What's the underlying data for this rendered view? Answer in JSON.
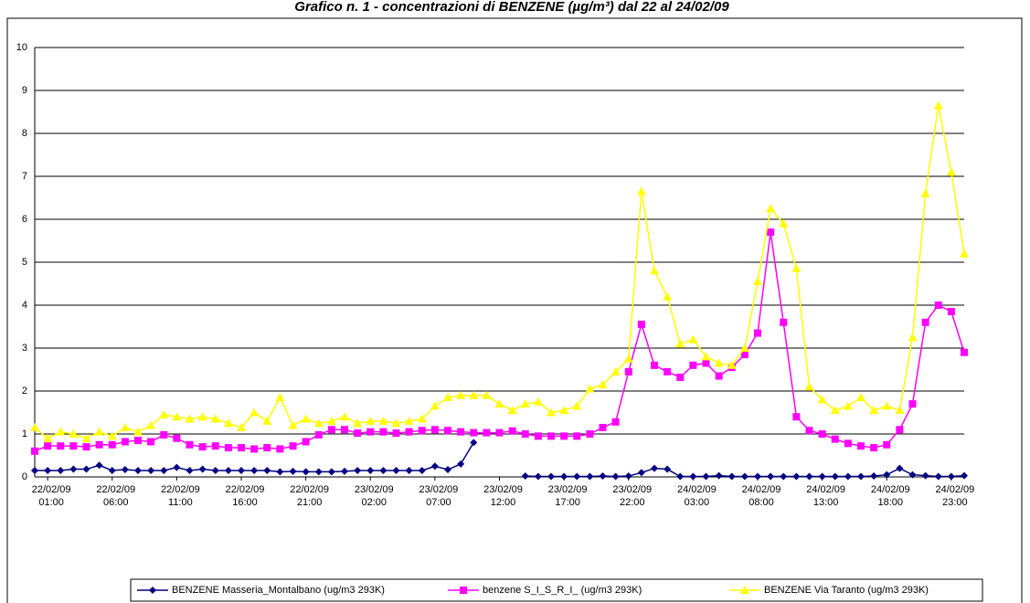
{
  "chart_data": {
    "type": "line",
    "title": "Grafico n. 1 - concentrazioni di BENZENE (µg/m³) dal 22 al 24/02/09",
    "categories": [
      null,
      "22/02/09\n01:00",
      null,
      null,
      null,
      null,
      "22/02/09\n06:00",
      null,
      null,
      null,
      null,
      "22/02/09\n11:00",
      null,
      null,
      null,
      null,
      "22/02/09\n16:00",
      null,
      null,
      null,
      null,
      "22/02/09\n21:00",
      null,
      null,
      null,
      null,
      "23/02/09\n02:00",
      null,
      null,
      null,
      null,
      "23/02/09\n07:00",
      null,
      null,
      null,
      null,
      "23/02/09\n12:00",
      null,
      null,
      null,
      null,
      "23/02/09\n17:00",
      null,
      null,
      null,
      null,
      "23/02/09\n22:00",
      null,
      null,
      null,
      null,
      "24/02/09\n03:00",
      null,
      null,
      null,
      null,
      "24/02/09\n08:00",
      null,
      null,
      null,
      null,
      "24/02/09\n13:00",
      null,
      null,
      null,
      null,
      "24/02/09\n18:00",
      null,
      null,
      null,
      null,
      "24/02/09\n23:00",
      null
    ],
    "series": [
      {
        "name": "BENZENE Masseria_Montalbano (ug/m3 293K)",
        "color": "#000080",
        "marker": "diamond",
        "values": [
          0.15,
          0.15,
          0.15,
          0.18,
          0.18,
          0.27,
          0.15,
          0.17,
          0.15,
          0.15,
          0.15,
          0.22,
          0.15,
          0.18,
          0.15,
          0.15,
          0.15,
          0.15,
          0.15,
          0.12,
          0.13,
          0.12,
          0.12,
          0.12,
          0.13,
          0.15,
          0.15,
          0.15,
          0.15,
          0.15,
          0.15,
          0.25,
          0.17,
          0.3,
          0.8,
          null,
          null,
          null,
          0.02,
          0.01,
          0.01,
          0.01,
          0.01,
          0.01,
          0.02,
          0.01,
          0.02,
          0.1,
          0.2,
          0.18,
          0.01,
          0.01,
          0.01,
          0.03,
          0.01,
          0.01,
          0.01,
          0.01,
          0.01,
          0.01,
          0.01,
          0.01,
          0.01,
          0.01,
          0.01,
          0.02,
          0.05,
          0.2,
          0.05,
          0.03,
          0.01,
          0.01,
          0.03
        ]
      },
      {
        "name": "benzene S_I_S_R_I_ (ug/m3 293K)",
        "color": "#ff00ff",
        "marker": "square",
        "values": [
          0.6,
          0.72,
          0.72,
          0.72,
          0.7,
          0.75,
          0.75,
          0.82,
          0.85,
          0.82,
          0.98,
          0.9,
          0.75,
          0.7,
          0.72,
          0.68,
          0.68,
          0.65,
          0.68,
          0.65,
          0.72,
          0.82,
          0.98,
          1.1,
          1.1,
          1.02,
          1.05,
          1.05,
          1.02,
          1.05,
          1.08,
          1.1,
          1.08,
          1.05,
          1.03,
          1.03,
          1.03,
          1.07,
          1.0,
          0.95,
          0.95,
          0.95,
          0.95,
          1.0,
          1.15,
          1.28,
          2.45,
          3.55,
          2.6,
          2.45,
          2.32,
          2.6,
          2.65,
          2.35,
          2.55,
          2.85,
          3.35,
          5.7,
          3.6,
          1.4,
          1.08,
          1.0,
          0.88,
          0.78,
          0.72,
          0.68,
          0.75,
          1.1,
          1.7,
          3.6,
          4.0,
          3.85,
          2.9
        ]
      },
      {
        "name": "BENZENE Via Taranto (ug/m3 293K)",
        "color": "#ffff00",
        "marker": "triangle",
        "values": [
          1.15,
          0.9,
          1.05,
          1.0,
          0.9,
          1.05,
          0.95,
          1.15,
          1.05,
          1.2,
          1.45,
          1.4,
          1.35,
          1.4,
          1.35,
          1.25,
          1.15,
          1.5,
          1.3,
          1.85,
          1.2,
          1.35,
          1.25,
          1.3,
          1.4,
          1.25,
          1.3,
          1.3,
          1.25,
          1.3,
          1.35,
          1.65,
          1.85,
          1.9,
          1.9,
          1.9,
          1.7,
          1.55,
          1.7,
          1.75,
          1.5,
          1.55,
          1.65,
          2.05,
          2.15,
          2.45,
          2.75,
          6.65,
          4.8,
          4.2,
          3.1,
          3.2,
          2.8,
          2.65,
          2.6,
          3.0,
          4.55,
          6.25,
          5.9,
          4.85,
          2.1,
          1.8,
          1.55,
          1.65,
          1.85,
          1.55,
          1.65,
          1.55,
          3.25,
          6.6,
          8.65,
          7.1,
          5.2
        ]
      }
    ],
    "ylim": [
      0,
      10
    ],
    "yticks": [
      0,
      1,
      2,
      3,
      4,
      5,
      6,
      7,
      8,
      9,
      10
    ],
    "grid": true
  }
}
